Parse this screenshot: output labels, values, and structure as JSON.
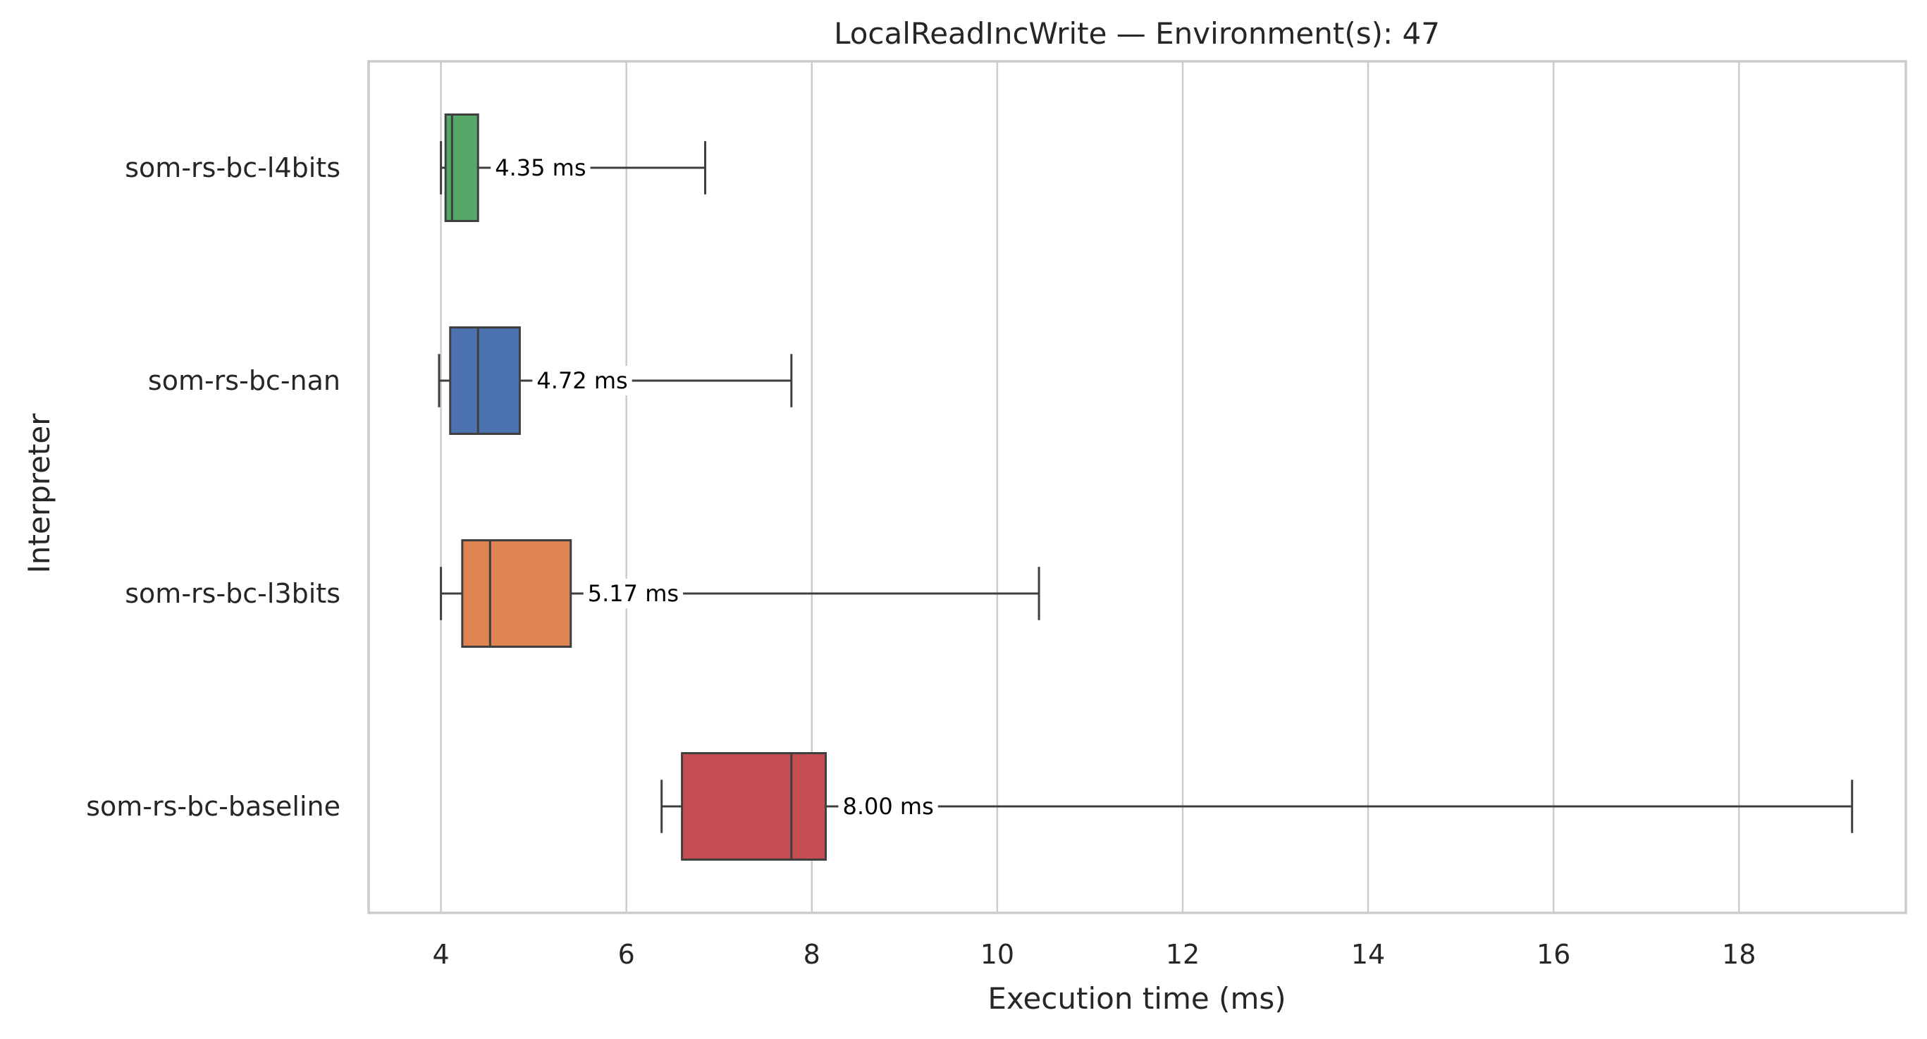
{
  "chart_data": {
    "type": "box",
    "title": "LocalReadIncWrite — Environment(s): 47",
    "xlabel": "Execution time (ms)",
    "ylabel": "Interpreter",
    "xlim": [
      3.22,
      19.8
    ],
    "xticks": [
      4,
      6,
      8,
      10,
      12,
      14,
      16,
      18
    ],
    "grid": "vertical",
    "orientation": "horizontal",
    "series": [
      {
        "name": "som-rs-bc-l4bits",
        "color": "#55a868",
        "whisker_low": 4.0,
        "q1": 4.05,
        "median": 4.12,
        "q3": 4.4,
        "whisker_high": 6.85,
        "mean_label": "4.35 ms"
      },
      {
        "name": "som-rs-bc-nan",
        "color": "#4c72b0",
        "whisker_low": 3.98,
        "q1": 4.1,
        "median": 4.4,
        "q3": 4.85,
        "whisker_high": 7.78,
        "mean_label": "4.72 ms"
      },
      {
        "name": "som-rs-bc-l3bits",
        "color": "#dd8452",
        "whisker_low": 4.0,
        "q1": 4.23,
        "median": 4.53,
        "q3": 5.4,
        "whisker_high": 10.45,
        "mean_label": "5.17 ms"
      },
      {
        "name": "som-rs-bc-baseline",
        "color": "#c44e52",
        "whisker_low": 6.38,
        "q1": 6.6,
        "median": 7.78,
        "q3": 8.15,
        "whisker_high": 19.22,
        "mean_label": "8.00 ms"
      }
    ]
  }
}
